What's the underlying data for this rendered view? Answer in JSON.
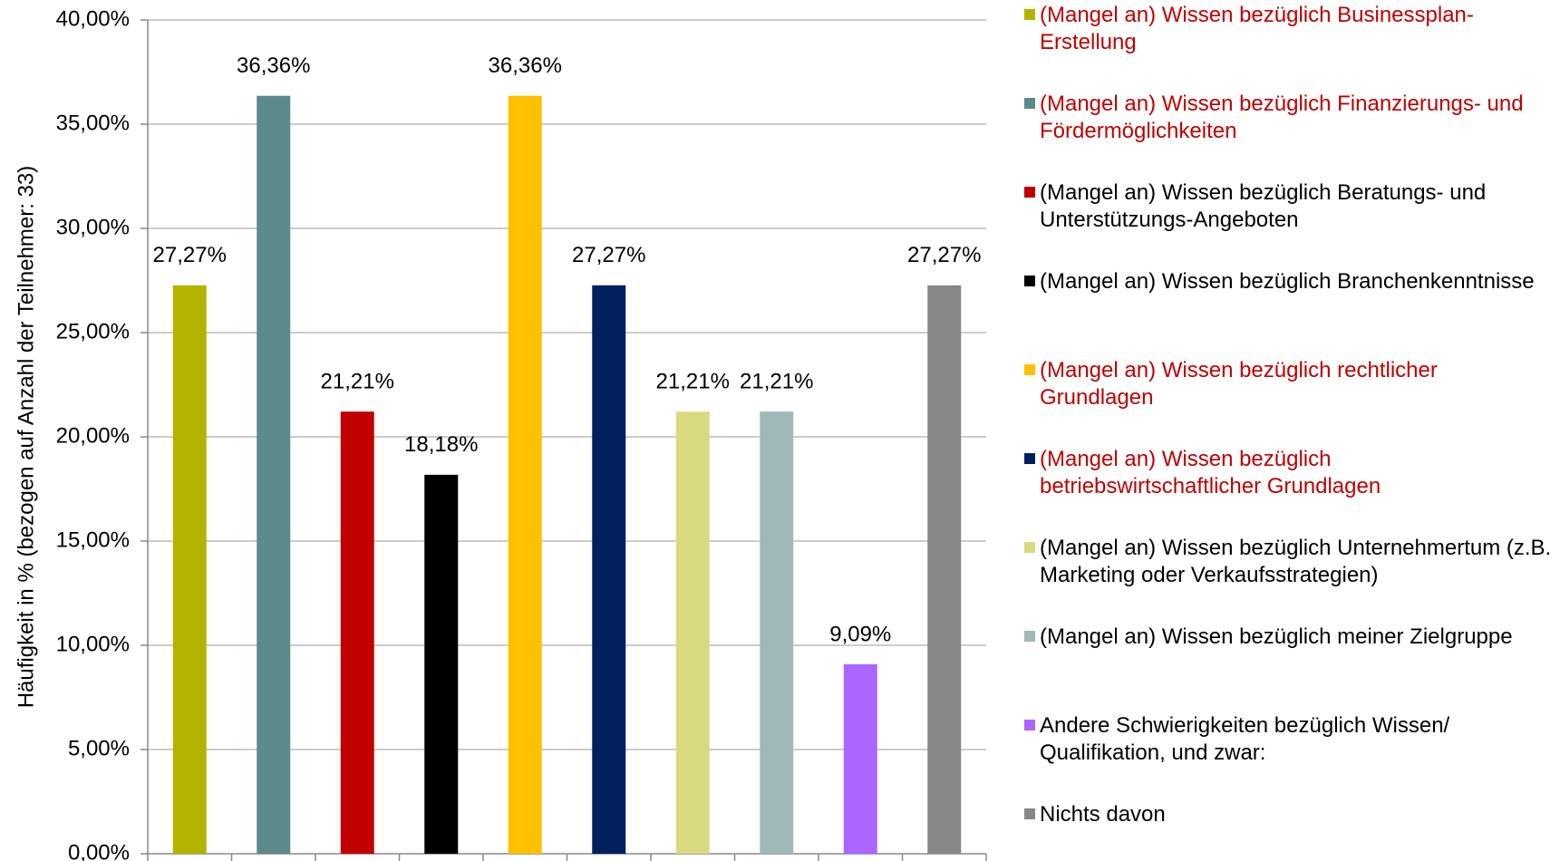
{
  "chart_data": {
    "type": "bar",
    "y_label": "Häufigkeit in % (bezogen auf Anzahl der Teilnehmer: 33)",
    "categories": [
      "(Mangel an) Wissen bezüglich Businessplan-Erstellung",
      "(Mangel an) Wissen bezüglich Finanzierungs- und Fördermöglichkeiten",
      "(Mangel an) Wissen bezüglich Beratungs- und Unterstützungs-Angeboten",
      "(Mangel an) Wissen bezüglich Branchenkenntnisse",
      "(Mangel an) Wissen bezüglich rechtlicher Grundlagen",
      "(Mangel an) Wissen bezüglich betriebswirtschaftlicher Grundlagen",
      "(Mangel an) Wissen bezüglich Unternehmertum (z.B. Marketing oder Verkaufsstrategien)",
      "(Mangel an) Wissen bezüglich meiner Zielgruppe",
      "Andere Schwierigkeiten bezüglich Wissen/ Qualifikation, und zwar:",
      "Nichts davon"
    ],
    "values": [
      27.27,
      36.36,
      21.21,
      18.18,
      36.36,
      27.27,
      21.21,
      21.21,
      9.09,
      27.27
    ],
    "value_labels": [
      "27,27%",
      "36,36%",
      "21,21%",
      "18,18%",
      "36,36%",
      "27,27%",
      "21,21%",
      "21,21%",
      "9,09%",
      "27,27%"
    ],
    "colors": [
      "#b4b400",
      "#5b8a8a",
      "#c00000",
      "#000000",
      "#ffc000",
      "#002060",
      "#d9d980",
      "#9fb8b8",
      "#aa66ff",
      "#878787"
    ],
    "legend_text_colors": [
      "#c00000",
      "#c00000",
      "#000000",
      "#000000",
      "#c00000",
      "#c00000",
      "#000000",
      "#000000",
      "#000000",
      "#000000"
    ],
    "ylim": [
      0,
      40
    ],
    "yticks": [
      {
        "value": 0,
        "label": "0,00%"
      },
      {
        "value": 5,
        "label": "5,00%"
      },
      {
        "value": 10,
        "label": "10,00%"
      },
      {
        "value": 15,
        "label": "15,00%"
      },
      {
        "value": 20,
        "label": "20,00%"
      },
      {
        "value": 25,
        "label": "25,00%"
      },
      {
        "value": 30,
        "label": "30,00%"
      },
      {
        "value": 35,
        "label": "35,00%"
      },
      {
        "value": 40,
        "label": "40,00%"
      }
    ],
    "grid": true,
    "legend": "right"
  }
}
